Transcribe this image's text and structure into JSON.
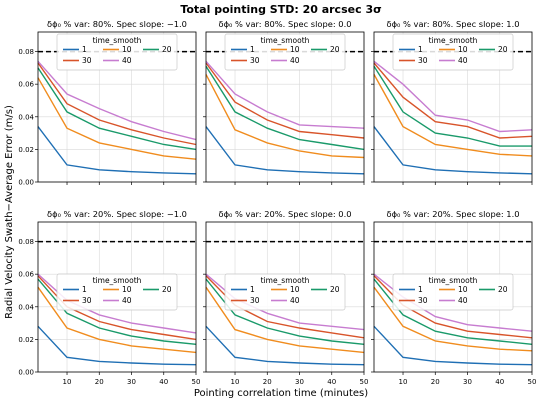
{
  "figure": {
    "suptitle": "Total pointing STD: 20 arcsec 3σ",
    "ylabel": "Radial Velocity Swath−Average Error (m/s)",
    "xlabel": "Pointing correlation time (minutes)"
  },
  "chart_data": [
    {
      "type": "line",
      "title": "δϕ₀ % var: 80%. Spec slope: −1.0",
      "x": [
        1,
        10,
        20,
        30,
        40,
        50
      ],
      "xticks": [
        10,
        20,
        30,
        40,
        50
      ],
      "yticks": [
        0.0,
        0.02,
        0.04,
        0.06,
        0.08
      ],
      "yticklabels_visible": true,
      "xticklabels_visible": false,
      "xlim": [
        1,
        50
      ],
      "ylim": [
        0.0,
        0.092
      ],
      "threshold": 0.08,
      "legend": {
        "title": "time_smooth",
        "placement": "top-center",
        "columns": 3
      },
      "series": [
        {
          "name": "1",
          "color": "#1f6fb4",
          "values": [
            0.034,
            0.0105,
            0.0075,
            0.0063,
            0.0056,
            0.005
          ]
        },
        {
          "name": "10",
          "color": "#f08c1e",
          "values": [
            0.064,
            0.033,
            0.024,
            0.02,
            0.016,
            0.014
          ]
        },
        {
          "name": "20",
          "color": "#1a9a6a",
          "values": [
            0.07,
            0.043,
            0.033,
            0.028,
            0.023,
            0.02
          ]
        },
        {
          "name": "30",
          "color": "#d8542a",
          "values": [
            0.073,
            0.048,
            0.038,
            0.032,
            0.027,
            0.023
          ]
        },
        {
          "name": "40",
          "color": "#c77cd0",
          "values": [
            0.074,
            0.054,
            0.045,
            0.037,
            0.031,
            0.026
          ]
        }
      ]
    },
    {
      "type": "line",
      "title": "δϕ₀ % var: 80%. Spec slope: 0.0",
      "x": [
        1,
        10,
        20,
        30,
        40,
        50
      ],
      "xticks": [
        10,
        20,
        30,
        40,
        50
      ],
      "yticks": [
        0.0,
        0.02,
        0.04,
        0.06,
        0.08
      ],
      "yticklabels_visible": false,
      "xticklabels_visible": false,
      "xlim": [
        1,
        50
      ],
      "ylim": [
        0.0,
        0.092
      ],
      "threshold": 0.08,
      "legend": {
        "title": "time_smooth",
        "placement": "top-center",
        "columns": 3
      },
      "series": [
        {
          "name": "1",
          "color": "#1f6fb4",
          "values": [
            0.034,
            0.0105,
            0.0075,
            0.0063,
            0.0056,
            0.005
          ]
        },
        {
          "name": "10",
          "color": "#f08c1e",
          "values": [
            0.066,
            0.032,
            0.024,
            0.019,
            0.016,
            0.015
          ]
        },
        {
          "name": "20",
          "color": "#1a9a6a",
          "values": [
            0.071,
            0.043,
            0.033,
            0.026,
            0.023,
            0.02
          ]
        },
        {
          "name": "30",
          "color": "#d8542a",
          "values": [
            0.073,
            0.049,
            0.038,
            0.031,
            0.029,
            0.027
          ]
        },
        {
          "name": "40",
          "color": "#c77cd0",
          "values": [
            0.074,
            0.054,
            0.043,
            0.035,
            0.034,
            0.033
          ]
        }
      ]
    },
    {
      "type": "line",
      "title": "δϕ₀ % var: 80%. Spec slope: 1.0",
      "x": [
        1,
        10,
        20,
        30,
        40,
        50
      ],
      "xticks": [
        10,
        20,
        30,
        40,
        50
      ],
      "yticks": [
        0.0,
        0.02,
        0.04,
        0.06,
        0.08
      ],
      "yticklabels_visible": false,
      "xticklabels_visible": false,
      "xlim": [
        1,
        50
      ],
      "ylim": [
        0.0,
        0.092
      ],
      "threshold": 0.08,
      "legend": {
        "title": "time_smooth",
        "placement": "top-center",
        "columns": 3
      },
      "series": [
        {
          "name": "1",
          "color": "#1f6fb4",
          "values": [
            0.034,
            0.0105,
            0.0075,
            0.0063,
            0.0056,
            0.005
          ]
        },
        {
          "name": "10",
          "color": "#f08c1e",
          "values": [
            0.066,
            0.034,
            0.023,
            0.02,
            0.017,
            0.016
          ]
        },
        {
          "name": "20",
          "color": "#1a9a6a",
          "values": [
            0.071,
            0.043,
            0.03,
            0.027,
            0.022,
            0.022
          ]
        },
        {
          "name": "30",
          "color": "#d8542a",
          "values": [
            0.073,
            0.052,
            0.037,
            0.034,
            0.027,
            0.028
          ]
        },
        {
          "name": "40",
          "color": "#c77cd0",
          "values": [
            0.074,
            0.06,
            0.041,
            0.038,
            0.031,
            0.032
          ]
        }
      ]
    },
    {
      "type": "line",
      "title": "δϕ₀ % var: 20%. Spec slope: −1.0",
      "x": [
        1,
        10,
        20,
        30,
        40,
        50
      ],
      "xticks": [
        10,
        20,
        30,
        40,
        50
      ],
      "yticks": [
        0.0,
        0.02,
        0.04,
        0.06,
        0.08
      ],
      "yticklabels_visible": true,
      "xticklabels_visible": true,
      "xlim": [
        1,
        50
      ],
      "ylim": [
        0.0,
        0.092
      ],
      "threshold": 0.08,
      "legend": {
        "title": "time_smooth",
        "placement": "center",
        "columns": 3
      },
      "series": [
        {
          "name": "1",
          "color": "#1f6fb4",
          "values": [
            0.028,
            0.009,
            0.0065,
            0.0055,
            0.0048,
            0.0045
          ]
        },
        {
          "name": "10",
          "color": "#f08c1e",
          "values": [
            0.052,
            0.027,
            0.02,
            0.016,
            0.014,
            0.012
          ]
        },
        {
          "name": "20",
          "color": "#1a9a6a",
          "values": [
            0.057,
            0.036,
            0.027,
            0.022,
            0.019,
            0.017
          ]
        },
        {
          "name": "30",
          "color": "#d8542a",
          "values": [
            0.059,
            0.04,
            0.031,
            0.026,
            0.023,
            0.02
          ]
        },
        {
          "name": "40",
          "color": "#c77cd0",
          "values": [
            0.06,
            0.044,
            0.035,
            0.03,
            0.027,
            0.024
          ]
        }
      ]
    },
    {
      "type": "line",
      "title": "δϕ₀ % var: 20%. Spec slope: 0.0",
      "x": [
        1,
        10,
        20,
        30,
        40,
        50
      ],
      "xticks": [
        10,
        20,
        30,
        40,
        50
      ],
      "yticks": [
        0.0,
        0.02,
        0.04,
        0.06,
        0.08
      ],
      "yticklabels_visible": false,
      "xticklabels_visible": true,
      "xlim": [
        1,
        50
      ],
      "ylim": [
        0.0,
        0.092
      ],
      "threshold": 0.08,
      "legend": {
        "title": "time_smooth",
        "placement": "center",
        "columns": 3
      },
      "series": [
        {
          "name": "1",
          "color": "#1f6fb4",
          "values": [
            0.028,
            0.009,
            0.0065,
            0.0055,
            0.0048,
            0.0045
          ]
        },
        {
          "name": "10",
          "color": "#f08c1e",
          "values": [
            0.052,
            0.026,
            0.02,
            0.016,
            0.014,
            0.012
          ]
        },
        {
          "name": "20",
          "color": "#1a9a6a",
          "values": [
            0.057,
            0.035,
            0.027,
            0.022,
            0.019,
            0.017
          ]
        },
        {
          "name": "30",
          "color": "#d8542a",
          "values": [
            0.059,
            0.041,
            0.031,
            0.027,
            0.024,
            0.021
          ]
        },
        {
          "name": "40",
          "color": "#c77cd0",
          "values": [
            0.06,
            0.045,
            0.036,
            0.03,
            0.028,
            0.026
          ]
        }
      ]
    },
    {
      "type": "line",
      "title": "δϕ₀ % var: 20%. Spec slope: 1.0",
      "x": [
        1,
        10,
        20,
        30,
        40,
        50
      ],
      "xticks": [
        10,
        20,
        30,
        40,
        50
      ],
      "yticks": [
        0.0,
        0.02,
        0.04,
        0.06,
        0.08
      ],
      "yticklabels_visible": false,
      "xticklabels_visible": true,
      "xlim": [
        1,
        50
      ],
      "ylim": [
        0.0,
        0.092
      ],
      "threshold": 0.08,
      "legend": {
        "title": "time_smooth",
        "placement": "center",
        "columns": 3
      },
      "series": [
        {
          "name": "1",
          "color": "#1f6fb4",
          "values": [
            0.028,
            0.009,
            0.0065,
            0.0055,
            0.0048,
            0.0045
          ]
        },
        {
          "name": "10",
          "color": "#f08c1e",
          "values": [
            0.052,
            0.028,
            0.019,
            0.016,
            0.014,
            0.013
          ]
        },
        {
          "name": "20",
          "color": "#1a9a6a",
          "values": [
            0.057,
            0.035,
            0.025,
            0.021,
            0.019,
            0.017
          ]
        },
        {
          "name": "30",
          "color": "#d8542a",
          "values": [
            0.059,
            0.041,
            0.03,
            0.025,
            0.023,
            0.021
          ]
        },
        {
          "name": "40",
          "color": "#c77cd0",
          "values": [
            0.06,
            0.046,
            0.034,
            0.029,
            0.027,
            0.025
          ]
        }
      ]
    }
  ]
}
